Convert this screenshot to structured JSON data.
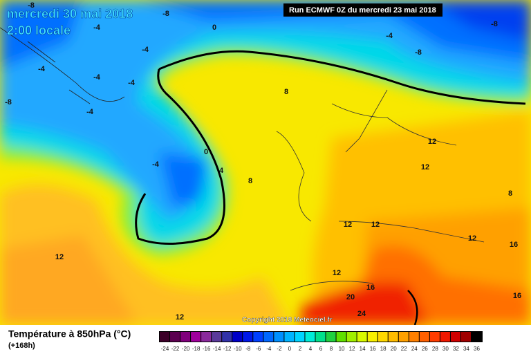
{
  "header": {
    "date": "mercredi 30 mai 2018",
    "time": "2:00 locale",
    "run": "Run ECMWF 0Z du mercredi 23 mai 2018"
  },
  "footer": {
    "title": "Température à 850hPa (°C)",
    "lead": "(+168h)",
    "copyright": "Copyright 2018 Meteociel.fr"
  },
  "legend": {
    "labels": [
      -24,
      -22,
      -20,
      -18,
      -16,
      -14,
      -12,
      -10,
      -8,
      -6,
      -4,
      -2,
      0,
      2,
      4,
      6,
      8,
      10,
      12,
      14,
      16,
      18,
      20,
      22,
      24,
      26,
      28,
      30,
      32,
      34,
      36
    ],
    "colors": [
      "#3c0028",
      "#5c0050",
      "#80007c",
      "#a0009c",
      "#8a2a9c",
      "#5a3a9a",
      "#3232a8",
      "#0000c8",
      "#0018e8",
      "#0040ff",
      "#0068ff",
      "#0090ff",
      "#00b4ff",
      "#00d4ff",
      "#00ecd8",
      "#00e08c",
      "#20d040",
      "#60e000",
      "#a0f000",
      "#d8fa00",
      "#f8f000",
      "#ffd800",
      "#ffbc00",
      "#ffa000",
      "#ff8000",
      "#ff6000",
      "#ff3c00",
      "#f01800",
      "#d00000",
      "#a00000",
      "#000000"
    ]
  },
  "contour_labels": [
    -8,
    -8,
    -8,
    -8,
    -8,
    -4,
    -4,
    -4,
    -4,
    -4,
    -4,
    -4,
    -4,
    0,
    0,
    4,
    8,
    8,
    8,
    12,
    12,
    12,
    12,
    12,
    12,
    12,
    12,
    16,
    16,
    16,
    20,
    24
  ]
}
